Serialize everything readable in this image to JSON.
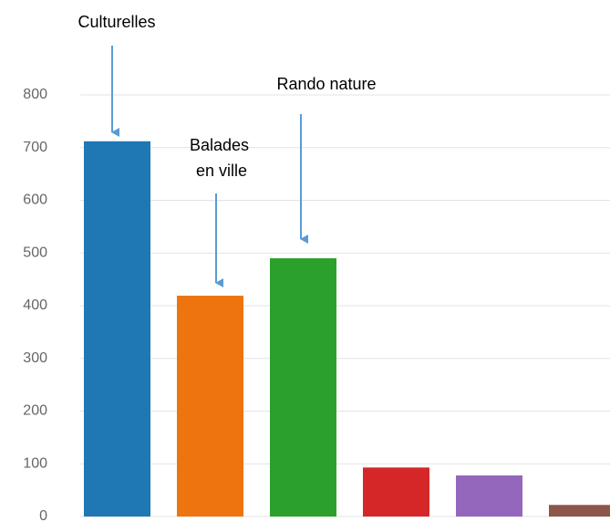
{
  "chart_data": {
    "type": "bar",
    "categories": [
      "Culturelles",
      "Balades en ville",
      "Rando nature",
      null,
      null,
      null
    ],
    "values": [
      712,
      419,
      490,
      93,
      78,
      22
    ],
    "colors": [
      "#1f77b4",
      "#ee7410",
      "#2ca02c",
      "#d62728",
      "#9467bd",
      "#8c564b"
    ],
    "ylim": [
      0,
      800
    ],
    "yticks": [
      0,
      100,
      200,
      300,
      400,
      500,
      600,
      700,
      800
    ],
    "grid": true
  }
}
